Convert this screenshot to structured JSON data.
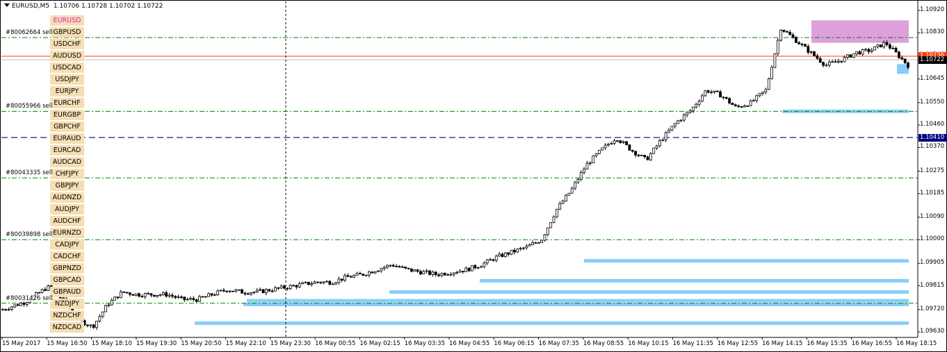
{
  "header": {
    "symbol": "EURUSD,M5",
    "ohlc": "1.10706 1.10728 1.10702 1.10722"
  },
  "symbols": [
    "EURUSD",
    "GBPUSD",
    "USDCHF",
    "AUDUSD",
    "USDCAD",
    "USDJPY",
    "EURJPY",
    "EURCHF",
    "EURGBP",
    "GBPCHF",
    "EURAUD",
    "EURCAD",
    "AUDCAD",
    "CHFJPY",
    "GBPJPY",
    "AUDNZD",
    "AUDJPY",
    "AUDCHF",
    "EURNZD",
    "CADJPY",
    "CADCHF",
    "GBPNZD",
    "GBPCAD",
    "GBPAUD",
    "NZDJPY",
    "NZDCHF",
    "NZDCAD"
  ],
  "active_symbol": "EURUSD",
  "orders": [
    {
      "label": "#80062664 sell",
      "price": 1.10811
    },
    {
      "label": "#80055966 sell",
      "price": 1.10515
    },
    {
      "label": "#80043335 sell",
      "price": 1.10248
    },
    {
      "label": "#80039898 sell",
      "price": 1.1
    },
    {
      "label": "#80031426 sell",
      "price": 1.09745
    }
  ],
  "price_axis": {
    "ticks": [
      "1.10920",
      "1.10830",
      "1.10740",
      "1.10645",
      "1.10550",
      "1.10460",
      "1.10370",
      "1.10275",
      "1.10185",
      "1.10090",
      "1.10000",
      "1.09905",
      "1.09815",
      "1.09720",
      "1.09630"
    ],
    "current_price": "1.10722",
    "ask_price": "1.10736",
    "level_price": "1.10410"
  },
  "time_axis": [
    "15 May 2017",
    "15 May 16:50",
    "15 May 18:10",
    "15 May 19:30",
    "15 May 20:50",
    "15 May 22:10",
    "15 May 23:30",
    "16 May 00:55",
    "16 May 02:15",
    "16 May 03:35",
    "16 May 04:55",
    "16 May 06:15",
    "16 May 07:35",
    "16 May 08:55",
    "16 May 10:15",
    "16 May 11:35",
    "16 May 12:55",
    "16 May 14:15",
    "16 May 15:35",
    "16 May 16:55",
    "16 May 18:15"
  ],
  "colors": {
    "candle": "#000000",
    "grid_order": "#008000",
    "ask_line": "#ff3c00",
    "level_line": "#000080",
    "zone_blue": "#87cefa",
    "zone_pink": "#dda0dd",
    "active_symbol": "#e020c0",
    "symbol_button": "#f5deb3"
  },
  "chart_data": {
    "type": "candlestick",
    "ylim": [
      1.0963,
      1.1092
    ],
    "close_path": [
      [
        0,
        1.0972
      ],
      [
        3,
        1.0975
      ],
      [
        6,
        1.0981
      ],
      [
        8,
        1.0976
      ],
      [
        10,
        1.0968
      ],
      [
        12,
        1.0965
      ],
      [
        14,
        1.0974
      ],
      [
        16,
        1.0979
      ],
      [
        18,
        1.0978
      ],
      [
        20,
        1.0978
      ],
      [
        22,
        1.0978
      ],
      [
        24,
        1.0976
      ],
      [
        26,
        1.0976
      ],
      [
        28,
        1.0978
      ],
      [
        30,
        1.098
      ],
      [
        32,
        1.0979
      ],
      [
        34,
        1.0979
      ],
      [
        36,
        1.098
      ],
      [
        38,
        1.0981
      ],
      [
        40,
        1.0982
      ],
      [
        42,
        1.0983
      ],
      [
        44,
        1.0983
      ],
      [
        46,
        1.0985
      ],
      [
        48,
        1.0986
      ],
      [
        50,
        1.0988
      ],
      [
        52,
        1.099
      ],
      [
        54,
        1.0988
      ],
      [
        56,
        1.0987
      ],
      [
        58,
        1.0986
      ],
      [
        60,
        1.0987
      ],
      [
        62,
        1.0988
      ],
      [
        64,
        1.099
      ],
      [
        66,
        1.0993
      ],
      [
        68,
        1.0995
      ],
      [
        70,
        1.0997
      ],
      [
        72,
        1.1
      ],
      [
        74,
        1.1012
      ],
      [
        76,
        1.102
      ],
      [
        78,
        1.103
      ],
      [
        80,
        1.1036
      ],
      [
        82,
        1.1041
      ],
      [
        84,
        1.1036
      ],
      [
        86,
        1.1032
      ],
      [
        88,
        1.104
      ],
      [
        90,
        1.1047
      ],
      [
        92,
        1.1052
      ],
      [
        94,
        1.106
      ],
      [
        96,
        1.1058
      ],
      [
        98,
        1.1053
      ],
      [
        100,
        1.1055
      ],
      [
        102,
        1.106
      ],
      [
        104,
        1.1085
      ],
      [
        106,
        1.108
      ],
      [
        108,
        1.1075
      ],
      [
        110,
        1.107
      ],
      [
        112,
        1.1072
      ],
      [
        114,
        1.1075
      ],
      [
        116,
        1.1076
      ],
      [
        118,
        1.1079
      ],
      [
        120,
        1.1073
      ],
      [
        121,
        1.107
      ]
    ],
    "zones": [
      {
        "type": "supply",
        "top": 1.1088,
        "bottom": 1.1079
      },
      {
        "type": "demand",
        "price": 1.10685
      },
      {
        "type": "demand",
        "price": 1.10515
      },
      {
        "type": "demand",
        "price": 1.09915
      },
      {
        "type": "demand",
        "price": 1.09835
      },
      {
        "type": "demand",
        "price": 1.0979
      },
      {
        "type": "demand",
        "price": 1.09755
      },
      {
        "type": "demand",
        "price": 1.0974
      },
      {
        "type": "demand",
        "price": 1.09665
      }
    ]
  }
}
